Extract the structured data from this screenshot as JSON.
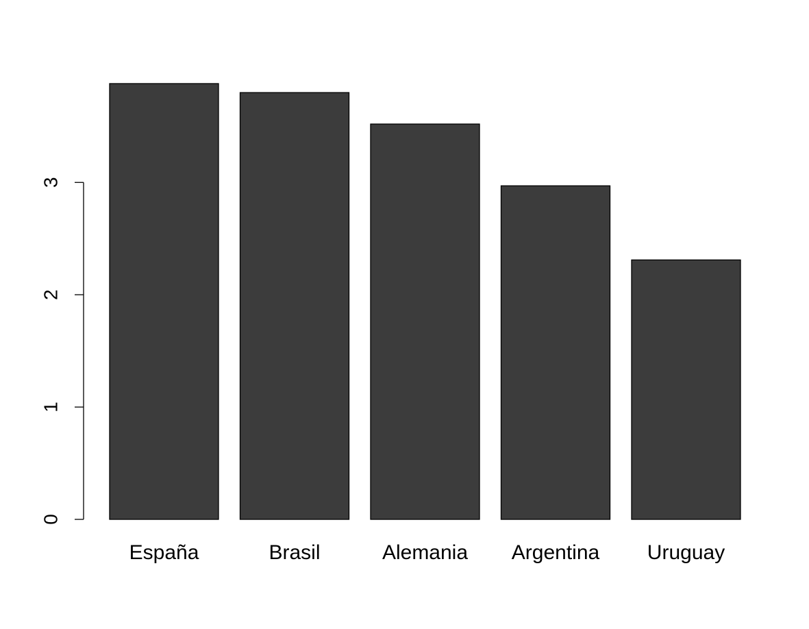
{
  "chart_data": {
    "type": "bar",
    "categories": [
      "España",
      "Brasil",
      "Alemania",
      "Argentina",
      "Uruguay"
    ],
    "values": [
      3.88,
      3.8,
      3.52,
      2.97,
      2.31
    ],
    "color": "#3c3c3c",
    "ylim": [
      0,
      3.88
    ],
    "yticks": [
      0,
      1,
      2,
      3
    ]
  }
}
